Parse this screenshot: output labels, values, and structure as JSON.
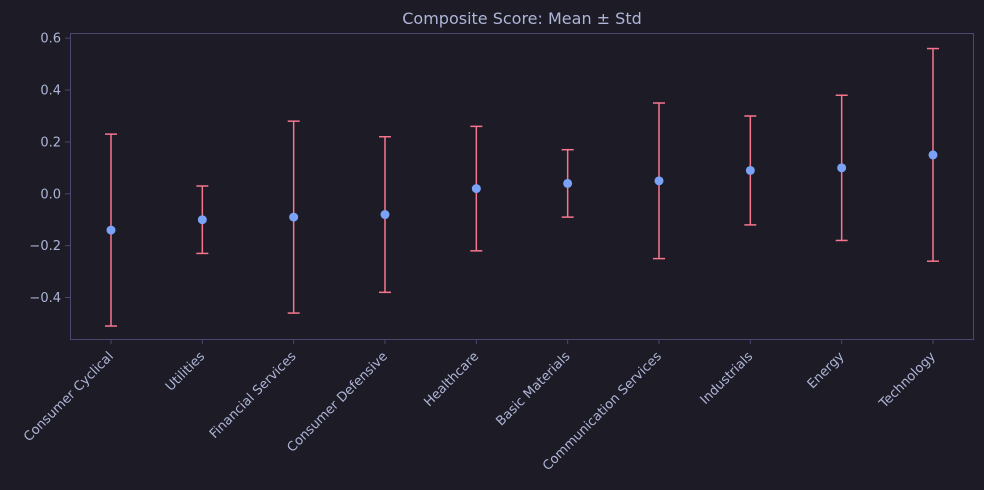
{
  "chart_data": {
    "type": "errorbar",
    "title": "Composite Score: Mean ± Std",
    "xlabel": "",
    "ylabel": "",
    "ylim": [
      -0.56,
      0.62
    ],
    "yticks": [
      "−0.4",
      "−0.2",
      "0.0",
      "0.2",
      "0.4",
      "0.6"
    ],
    "ytick_values": [
      -0.4,
      -0.2,
      0.0,
      0.2,
      0.4,
      0.6
    ],
    "grid": false,
    "categories": [
      "Consumer Cyclical",
      "Utilities",
      "Financial Services",
      "Consumer Defensive",
      "Healthcare",
      "Basic Materials",
      "Communication Services",
      "Industrials",
      "Energy",
      "Technology"
    ],
    "series": [
      {
        "mean": [
          -0.14,
          -0.1,
          -0.09,
          -0.08,
          0.02,
          0.04,
          0.05,
          0.09,
          0.1,
          0.15
        ],
        "std": [
          0.37,
          0.13,
          0.37,
          0.3,
          0.24,
          0.13,
          0.3,
          0.21,
          0.28,
          0.41
        ]
      }
    ],
    "colors": {
      "background": "#1c1b26",
      "axes_frame": "#4a4870",
      "text": "#aeb5d6",
      "marker": "#7aa2f7",
      "errorbar": "#f7768e"
    }
  }
}
